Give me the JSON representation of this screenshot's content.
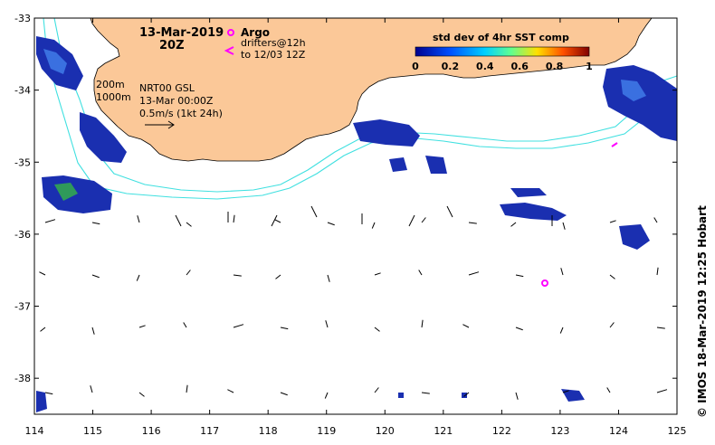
{
  "map": {
    "date": "13-Mar-2019",
    "time": "20Z",
    "legend_argo": "Argo",
    "legend_drifters_line1": "drifters@12h",
    "legend_drifters_line2": "to 12/03 12Z",
    "colorbar_title": "std dev of 4hr SST comp",
    "colorbar_ticks": [
      "0",
      "0.2",
      "0.4",
      "0.6",
      "0.8",
      "1"
    ],
    "contour_200": "200m",
    "contour_1000": "1000m",
    "product_line1": "NRT00 GSL",
    "product_line2": "13-Mar 00:00Z",
    "product_line3": "0.5m/s (1kt 24h)",
    "credit": "© IMOS 18-Mar-2019 12:25 Hobart",
    "x_ticks": [
      "114",
      "115",
      "116",
      "117",
      "118",
      "119",
      "120",
      "121",
      "122",
      "123",
      "124",
      "125"
    ],
    "y_ticks": [
      "-33",
      "-34",
      "-35",
      "-36",
      "-37",
      "-38"
    ],
    "colors": {
      "land": "#fbc898",
      "isobath": "#40e0e0",
      "sst_low": "#0a1ea0",
      "sst_mid": "#2a60d0",
      "argo": "#ff00ff"
    },
    "lon_range": [
      114,
      125
    ],
    "lat_range": [
      -38.5,
      -33
    ]
  }
}
